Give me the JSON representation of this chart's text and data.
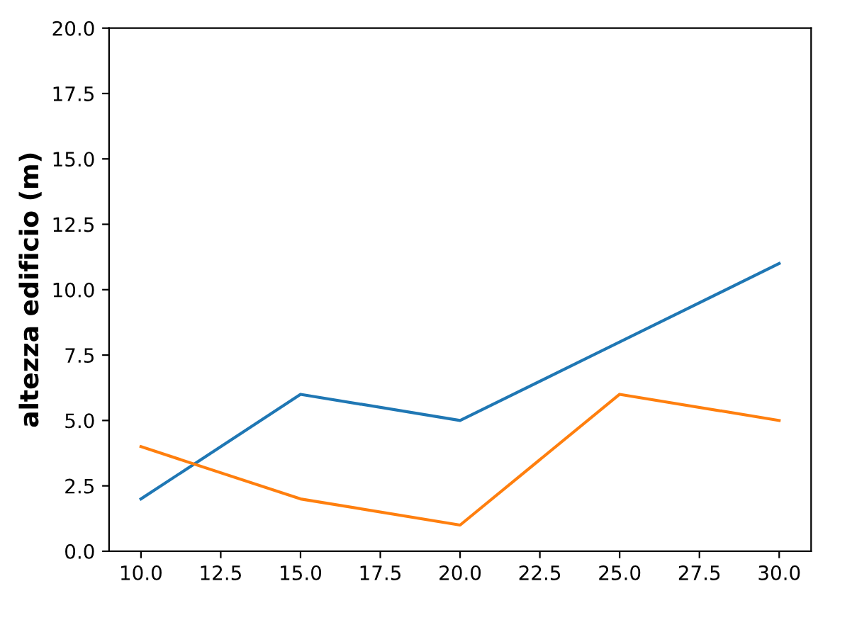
{
  "chart_data": {
    "type": "line",
    "ylabel": "altezza edificio (m)",
    "x": [
      10,
      15,
      20,
      25,
      30
    ],
    "series": [
      {
        "color": "#1f77b4",
        "values": [
          2,
          6,
          5,
          8,
          11
        ]
      },
      {
        "color": "#ff7f0e",
        "values": [
          4,
          2,
          1,
          6,
          5
        ]
      }
    ],
    "xlim": [
      9,
      31
    ],
    "ylim": [
      0,
      20
    ],
    "xticks": [
      {
        "value": 10,
        "label": "10.0"
      },
      {
        "value": 12.5,
        "label": "12.5"
      },
      {
        "value": 15,
        "label": "15.0"
      },
      {
        "value": 17.5,
        "label": "17.5"
      },
      {
        "value": 20,
        "label": "20.0"
      },
      {
        "value": 22.5,
        "label": "22.5"
      },
      {
        "value": 25,
        "label": "25.0"
      },
      {
        "value": 27.5,
        "label": "27.5"
      },
      {
        "value": 30,
        "label": "30.0"
      }
    ],
    "yticks": [
      {
        "value": 0,
        "label": "0.0"
      },
      {
        "value": 2.5,
        "label": "2.5"
      },
      {
        "value": 5,
        "label": "5.0"
      },
      {
        "value": 7.5,
        "label": "7.5"
      },
      {
        "value": 10,
        "label": "10.0"
      },
      {
        "value": 12.5,
        "label": "12.5"
      },
      {
        "value": 15,
        "label": "15.0"
      },
      {
        "value": 17.5,
        "label": "17.5"
      },
      {
        "value": 20,
        "label": "20.0"
      }
    ],
    "line_style": "solid"
  }
}
